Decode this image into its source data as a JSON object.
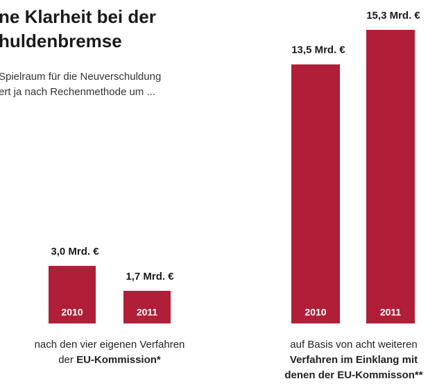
{
  "chart_data": {
    "type": "bar",
    "title": [
      "ne Klarheit bei der",
      "huldenbremse"
    ],
    "subtitle": [
      "Spielraum für die Neuverschuldung",
      "ert ja nach Rechenmethode um ..."
    ],
    "categories": [
      "2010",
      "2011",
      "2010",
      "2011"
    ],
    "values": [
      3.0,
      1.7,
      13.5,
      15.3
    ],
    "value_labels": [
      "3,0 Mrd. €",
      "1,7 Mrd. €",
      "13,5 Mrd. €",
      "15,3 Mrd. €"
    ],
    "color": "#b01e38",
    "groups": [
      {
        "caption": [
          [
            {
              "text": "nach den vier eigenen Verfahren"
            }
          ],
          [
            {
              "text": "der "
            },
            {
              "text": "EU-Kommission*",
              "bold": true
            }
          ]
        ]
      },
      {
        "caption": [
          [
            {
              "text": "auf Basis von acht weiteren"
            }
          ],
          [
            {
              "text": "Verfahren im Einklang mit",
              "bold": true
            }
          ],
          [
            {
              "text": "denen der EU-Kommisson**",
              "bold": true
            }
          ]
        ]
      }
    ]
  }
}
